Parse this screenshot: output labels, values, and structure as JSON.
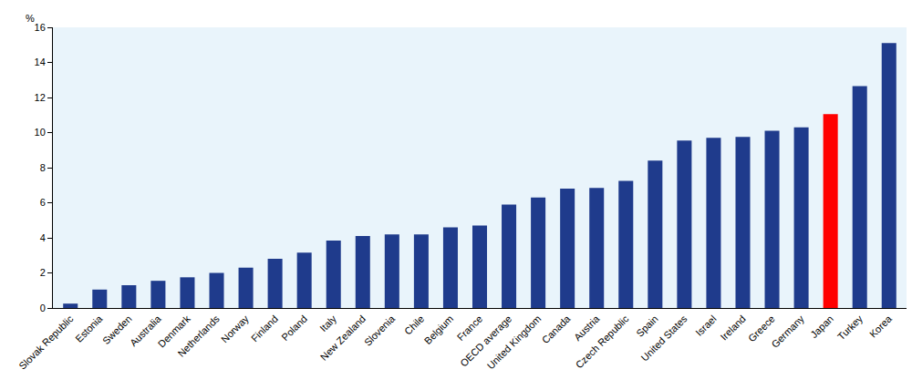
{
  "chart_data": {
    "type": "bar",
    "ylabel": "%",
    "categories": [
      "Slovak Republic",
      "Estonia",
      "Sweden",
      "Australia",
      "Denmark",
      "Netherlands",
      "Norway",
      "Finland",
      "Poland",
      "Italy",
      "New Zealand",
      "Slovenia",
      "Chile",
      "Belgium",
      "France",
      "OECD average",
      "United Kingdom",
      "Canada",
      "Austria",
      "Czech Republic",
      "Spain",
      "United States",
      "Israel",
      "Ireland",
      "Greece",
      "Germany",
      "Japan",
      "Turkey",
      "Korea"
    ],
    "values": [
      0.25,
      1.05,
      1.3,
      1.55,
      1.75,
      2.0,
      2.3,
      2.8,
      3.15,
      3.85,
      4.1,
      4.2,
      4.2,
      4.6,
      4.7,
      5.9,
      6.3,
      6.8,
      6.85,
      7.25,
      8.4,
      9.55,
      9.7,
      9.75,
      10.1,
      10.3,
      11.05,
      12.65,
      15.1
    ],
    "colors": [
      "#1f3b8c",
      "#1f3b8c",
      "#1f3b8c",
      "#1f3b8c",
      "#1f3b8c",
      "#1f3b8c",
      "#1f3b8c",
      "#1f3b8c",
      "#1f3b8c",
      "#1f3b8c",
      "#1f3b8c",
      "#1f3b8c",
      "#1f3b8c",
      "#1f3b8c",
      "#1f3b8c",
      "#1f3b8c",
      "#1f3b8c",
      "#1f3b8c",
      "#1f3b8c",
      "#1f3b8c",
      "#1f3b8c",
      "#1f3b8c",
      "#1f3b8c",
      "#1f3b8c",
      "#1f3b8c",
      "#1f3b8c",
      "#ff0000",
      "#1f3b8c",
      "#1f3b8c"
    ],
    "ylim": [
      0,
      16
    ],
    "yticks": [
      0,
      2,
      4,
      6,
      8,
      10,
      12,
      14,
      16
    ],
    "grid": false
  }
}
